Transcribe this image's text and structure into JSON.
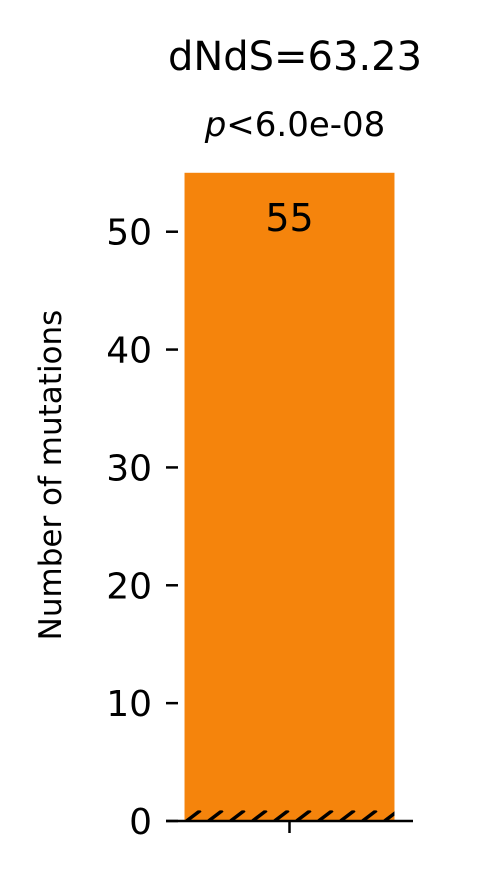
{
  "chart_data": {
    "type": "bar",
    "title": "dNdS=63.23",
    "subtitle_prefix": "p",
    "subtitle_rest": "<6.0e-08",
    "xlabel": "",
    "ylabel": "Number of mutations",
    "categories": [
      ""
    ],
    "series": [
      {
        "values": [
          55
        ],
        "color": "#f5840c"
      }
    ],
    "hatched_base": {
      "value": 0.9,
      "color": "#f5840c",
      "hatch_color": "#000000"
    },
    "data_labels": [
      "55"
    ],
    "yticks": [
      0,
      10,
      20,
      30,
      40,
      50
    ],
    "ytick_labels": [
      "0",
      "10",
      "20",
      "30",
      "40",
      "50"
    ],
    "ylim": [
      0,
      56
    ],
    "grid": false,
    "legend": "none"
  }
}
